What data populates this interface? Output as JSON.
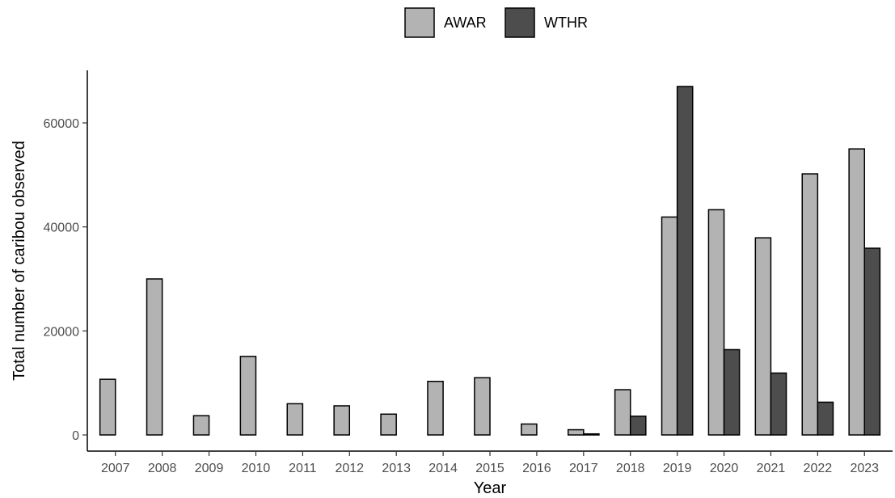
{
  "chart_data": {
    "type": "bar",
    "title": "",
    "xlabel": "Year",
    "ylabel": "Total number of caribou observed",
    "categories": [
      "2007",
      "2008",
      "2009",
      "2010",
      "2011",
      "2012",
      "2013",
      "2014",
      "2015",
      "2016",
      "2017",
      "2018",
      "2019",
      "2020",
      "2021",
      "2022",
      "2023"
    ],
    "series": [
      {
        "name": "AWAR",
        "color": "#b3b3b3",
        "values": [
          10700,
          30000,
          3700,
          15100,
          6000,
          5600,
          4000,
          10300,
          11000,
          2100,
          1000,
          8700,
          41900,
          43300,
          37900,
          50200,
          55000
        ]
      },
      {
        "name": "WTHR",
        "color": "#4d4d4d",
        "values": [
          null,
          null,
          null,
          null,
          null,
          null,
          null,
          null,
          null,
          null,
          200,
          3600,
          67000,
          16400,
          11900,
          6300,
          35900
        ]
      }
    ],
    "ylim": [
      0,
      70000
    ],
    "yticks": [
      0,
      20000,
      40000,
      60000
    ],
    "ytick_labels": [
      "0",
      "20000",
      "40000",
      "60000"
    ],
    "grid": false,
    "legend": "top-center"
  }
}
